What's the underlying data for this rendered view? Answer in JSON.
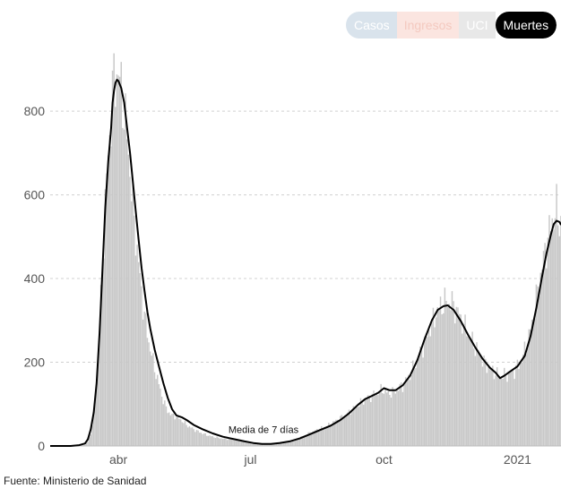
{
  "tabs": [
    {
      "label": "Casos",
      "active": false
    },
    {
      "label": "Ingresos",
      "active": false
    },
    {
      "label": "UCI",
      "active": false
    },
    {
      "label": "Muertes",
      "active": true
    }
  ],
  "source": "Fuente: Ministerio de Sanidad",
  "colors": {
    "bars": "#c8c8c8",
    "line": "#000000",
    "grid": "#d0d0d0"
  },
  "chart_data": {
    "type": "bar",
    "title": "",
    "xlabel": "",
    "ylabel": "",
    "ylim": [
      0,
      920
    ],
    "yticks": [
      0,
      200,
      400,
      600,
      800
    ],
    "xticks": [
      {
        "label": "abr",
        "day": 0
      },
      {
        "label": "jul",
        "day": 91
      },
      {
        "label": "oct",
        "day": 183
      },
      {
        "label": "2021",
        "day": 275
      }
    ],
    "x_unit": "days since 2020-04-01",
    "grid": true,
    "series": [
      {
        "name": "Muertes",
        "type": "bar",
        "points": [
          [
            -47,
            0
          ],
          [
            -40,
            0
          ],
          [
            -33,
            0
          ],
          [
            -27,
            1
          ],
          [
            -23,
            3
          ],
          [
            -21,
            10
          ],
          [
            -19,
            30
          ],
          [
            -17,
            70
          ],
          [
            -15,
            150
          ],
          [
            -13,
            280
          ],
          [
            -11,
            420
          ],
          [
            -9,
            580
          ],
          [
            -7,
            690
          ],
          [
            -5,
            790
          ],
          [
            -4,
            850
          ],
          [
            -2,
            880
          ],
          [
            -1,
            900
          ],
          [
            1,
            870
          ],
          [
            3,
            830
          ],
          [
            5,
            770
          ],
          [
            7,
            700
          ],
          [
            9,
            620
          ],
          [
            11,
            540
          ],
          [
            13,
            470
          ],
          [
            15,
            400
          ],
          [
            17,
            340
          ],
          [
            19,
            290
          ],
          [
            21,
            250
          ],
          [
            24,
            200
          ],
          [
            27,
            160
          ],
          [
            30,
            120
          ],
          [
            33,
            90
          ],
          [
            36,
            75
          ],
          [
            40,
            70
          ],
          [
            44,
            60
          ],
          [
            48,
            48
          ],
          [
            53,
            38
          ],
          [
            58,
            30
          ],
          [
            63,
            24
          ],
          [
            68,
            20
          ],
          [
            73,
            17
          ],
          [
            79,
            15
          ],
          [
            85,
            12
          ],
          [
            91,
            9
          ],
          [
            97,
            6
          ],
          [
            103,
            5
          ],
          [
            110,
            6
          ],
          [
            117,
            10
          ],
          [
            124,
            18
          ],
          [
            131,
            30
          ],
          [
            138,
            40
          ],
          [
            145,
            50
          ],
          [
            152,
            65
          ],
          [
            159,
            80
          ],
          [
            166,
            100
          ],
          [
            172,
            115
          ],
          [
            177,
            125
          ],
          [
            182,
            135
          ],
          [
            186,
            125
          ],
          [
            190,
            130
          ],
          [
            196,
            145
          ],
          [
            202,
            175
          ],
          [
            208,
            220
          ],
          [
            214,
            275
          ],
          [
            218,
            310
          ],
          [
            222,
            335
          ],
          [
            226,
            345
          ],
          [
            230,
            340
          ],
          [
            234,
            320
          ],
          [
            238,
            290
          ],
          [
            243,
            255
          ],
          [
            248,
            225
          ],
          [
            253,
            195
          ],
          [
            258,
            180
          ],
          [
            263,
            165
          ],
          [
            268,
            170
          ],
          [
            273,
            180
          ],
          [
            278,
            205
          ],
          [
            283,
            260
          ],
          [
            287,
            330
          ],
          [
            291,
            410
          ],
          [
            295,
            480
          ],
          [
            299,
            540
          ],
          [
            302,
            560
          ],
          [
            305,
            530
          ]
        ]
      },
      {
        "name": "Media de 7 días",
        "type": "line",
        "points": [
          [
            -47,
            0
          ],
          [
            -33,
            0
          ],
          [
            -27,
            2
          ],
          [
            -23,
            6
          ],
          [
            -21,
            16
          ],
          [
            -19,
            40
          ],
          [
            -17,
            80
          ],
          [
            -15,
            150
          ],
          [
            -13,
            270
          ],
          [
            -11,
            420
          ],
          [
            -9,
            570
          ],
          [
            -7,
            680
          ],
          [
            -5,
            760
          ],
          [
            -4,
            820
          ],
          [
            -3,
            850
          ],
          [
            -2,
            868
          ],
          [
            -1,
            875
          ],
          [
            0,
            872
          ],
          [
            2,
            855
          ],
          [
            4,
            820
          ],
          [
            6,
            760
          ],
          [
            8,
            700
          ],
          [
            10,
            630
          ],
          [
            12,
            560
          ],
          [
            14,
            490
          ],
          [
            16,
            425
          ],
          [
            18,
            370
          ],
          [
            20,
            320
          ],
          [
            22,
            280
          ],
          [
            25,
            230
          ],
          [
            28,
            190
          ],
          [
            31,
            150
          ],
          [
            34,
            115
          ],
          [
            37,
            88
          ],
          [
            40,
            73
          ],
          [
            44,
            68
          ],
          [
            47,
            62
          ],
          [
            52,
            50
          ],
          [
            58,
            40
          ],
          [
            65,
            30
          ],
          [
            72,
            22
          ],
          [
            80,
            16
          ],
          [
            87,
            11
          ],
          [
            93,
            7
          ],
          [
            99,
            5
          ],
          [
            105,
            5
          ],
          [
            111,
            7
          ],
          [
            118,
            11
          ],
          [
            125,
            18
          ],
          [
            132,
            28
          ],
          [
            139,
            38
          ],
          [
            146,
            48
          ],
          [
            153,
            62
          ],
          [
            159,
            78
          ],
          [
            165,
            98
          ],
          [
            170,
            112
          ],
          [
            175,
            120
          ],
          [
            179,
            127
          ],
          [
            183,
            138
          ],
          [
            187,
            133
          ],
          [
            191,
            133
          ],
          [
            196,
            145
          ],
          [
            201,
            168
          ],
          [
            206,
            205
          ],
          [
            211,
            255
          ],
          [
            216,
            300
          ],
          [
            220,
            325
          ],
          [
            224,
            334
          ],
          [
            227,
            336
          ],
          [
            231,
            325
          ],
          [
            236,
            298
          ],
          [
            241,
            265
          ],
          [
            246,
            235
          ],
          [
            251,
            208
          ],
          [
            256,
            187
          ],
          [
            260,
            175
          ],
          [
            263,
            162
          ],
          [
            266,
            168
          ],
          [
            270,
            178
          ],
          [
            275,
            190
          ],
          [
            280,
            215
          ],
          [
            284,
            262
          ],
          [
            288,
            330
          ],
          [
            292,
            405
          ],
          [
            295,
            460
          ],
          [
            298,
            505
          ],
          [
            300,
            530
          ],
          [
            302,
            538
          ],
          [
            304,
            535
          ],
          [
            305,
            528
          ]
        ]
      }
    ],
    "annotations": [
      {
        "text": "Media de 7 días",
        "day": 100,
        "value": 14
      }
    ]
  }
}
